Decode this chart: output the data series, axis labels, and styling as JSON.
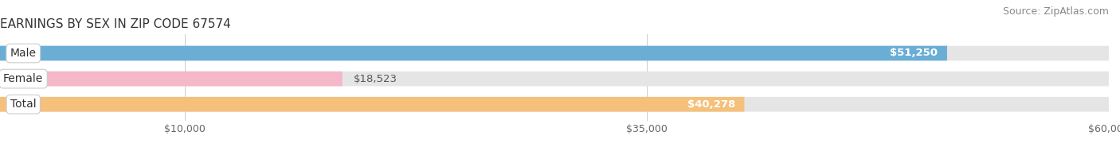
{
  "title": "EARNINGS BY SEX IN ZIP CODE 67574",
  "source": "Source: ZipAtlas.com",
  "categories": [
    "Male",
    "Female",
    "Total"
  ],
  "values": [
    51250,
    18523,
    40278
  ],
  "bar_colors": [
    "#6aaed6",
    "#f4b8c8",
    "#f5c07a"
  ],
  "bar_labels": [
    "$51,250",
    "$18,523",
    "$40,278"
  ],
  "label_inside": [
    true,
    false,
    true
  ],
  "xmin": 0,
  "xmax": 60000,
  "xticks": [
    10000,
    35000,
    60000
  ],
  "xtick_labels": [
    "$10,000",
    "$35,000",
    "$60,000"
  ],
  "background_color": "#ffffff",
  "bar_background": "#e5e5e5",
  "title_fontsize": 11,
  "source_fontsize": 9,
  "label_fontsize": 9.5,
  "tick_fontsize": 9,
  "category_fontsize": 10,
  "bar_height": 0.58
}
